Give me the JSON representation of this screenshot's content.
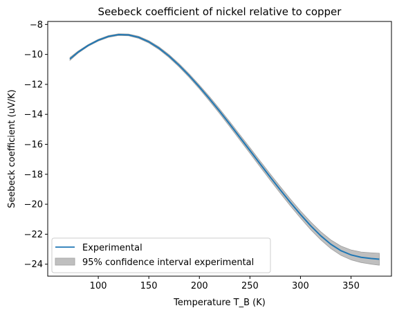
{
  "chart_data": {
    "type": "line",
    "title": "Seebeck coefficient of nickel relative to copper",
    "xlabel": "Temperature T_B (K)",
    "ylabel": "Seebeck coefficient (uV/K)",
    "xlim": [
      50,
      390
    ],
    "ylim": [
      -24.8,
      -7.8
    ],
    "xticks": [
      100,
      150,
      200,
      250,
      300,
      350
    ],
    "yticks": [
      -24,
      -22,
      -20,
      -18,
      -16,
      -14,
      -12,
      -10,
      -8
    ],
    "grid": false,
    "legend_position": "lower-left",
    "series": [
      {
        "name": "Experimental",
        "color": "#1f77b4",
        "kind": "line",
        "x": [
          72,
          80,
          90,
          100,
          110,
          120,
          130,
          140,
          150,
          160,
          170,
          180,
          190,
          200,
          210,
          220,
          230,
          240,
          250,
          260,
          270,
          280,
          290,
          300,
          310,
          320,
          330,
          340,
          350,
          360,
          370,
          378
        ],
        "y": [
          -10.3,
          -9.85,
          -9.4,
          -9.05,
          -8.8,
          -8.68,
          -8.7,
          -8.86,
          -9.16,
          -9.58,
          -10.11,
          -10.73,
          -11.42,
          -12.17,
          -12.96,
          -13.79,
          -14.65,
          -15.53,
          -16.41,
          -17.3,
          -18.18,
          -19.04,
          -19.88,
          -20.68,
          -21.43,
          -22.1,
          -22.67,
          -23.1,
          -23.38,
          -23.54,
          -23.62,
          -23.67
        ]
      },
      {
        "name": "95% confidence interval experimental",
        "color": "#bfbfbf",
        "kind": "band",
        "x": [
          72,
          80,
          90,
          100,
          110,
          120,
          130,
          140,
          150,
          160,
          170,
          180,
          190,
          200,
          210,
          220,
          230,
          240,
          250,
          260,
          270,
          280,
          290,
          300,
          310,
          320,
          330,
          340,
          350,
          360,
          370,
          378
        ],
        "lower": [
          -10.4,
          -9.92,
          -9.46,
          -9.11,
          -8.86,
          -8.74,
          -8.76,
          -8.93,
          -9.24,
          -9.67,
          -10.21,
          -10.84,
          -11.54,
          -12.3,
          -13.11,
          -13.95,
          -14.82,
          -15.71,
          -16.6,
          -17.5,
          -18.39,
          -19.26,
          -20.11,
          -20.92,
          -21.69,
          -22.37,
          -22.96,
          -23.41,
          -23.71,
          -23.89,
          -24.0,
          -24.07
        ],
        "upper": [
          -10.2,
          -9.78,
          -9.34,
          -8.99,
          -8.74,
          -8.62,
          -8.64,
          -8.79,
          -9.08,
          -9.49,
          -10.01,
          -10.62,
          -11.3,
          -12.04,
          -12.81,
          -13.63,
          -14.48,
          -15.35,
          -16.22,
          -17.1,
          -17.97,
          -18.82,
          -19.65,
          -20.44,
          -21.17,
          -21.83,
          -22.38,
          -22.79,
          -23.05,
          -23.19,
          -23.24,
          -23.27
        ]
      }
    ]
  }
}
